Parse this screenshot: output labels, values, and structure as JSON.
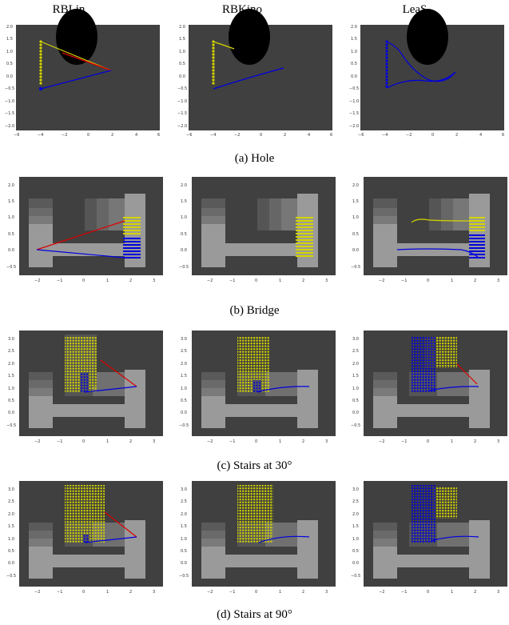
{
  "column_headers": [
    "RBLin",
    "RBKino",
    "LeaS"
  ],
  "captions": [
    "(a) Hole",
    "(b) Bridge",
    "(c) Stairs at 30°",
    "(d) Stairs at 90°"
  ],
  "colors": {
    "background_field": "#404040",
    "terrain_light": "#9a9a9a",
    "hole": "#000000",
    "yellow": "#d4d400",
    "blue": "#0000dd",
    "red": "#dd0000"
  },
  "chart_data": [
    {
      "panel": "hole",
      "type": "scatter",
      "xlim": [
        -6,
        6
      ],
      "ylim": [
        -2.1,
        2.1
      ],
      "xticks": [
        "−6",
        "−4",
        "−2",
        "0",
        "2",
        "4",
        "6"
      ],
      "yticks": [
        "2.0",
        "1.5",
        "1.0",
        "0.5",
        "0.0",
        "−0.5",
        "−1.0",
        "−1.5",
        "−2.0"
      ],
      "grid": false,
      "start_points": [
        {
          "x": -4,
          "y": 1.4
        },
        {
          "x": -4,
          "y": -0.5
        }
      ],
      "goal": {
        "x": 1.8,
        "y": 0.3
      }
    },
    {
      "panel": "bridge",
      "type": "scatter",
      "xlim": [
        -3,
        3.4
      ],
      "ylim": [
        -0.7,
        2.3
      ],
      "xticks": [
        "−2",
        "−1",
        "0",
        "1",
        "2",
        "3"
      ],
      "yticks": [
        "2.0",
        "1.5",
        "1.0",
        "0.5",
        "0.0",
        "−0.5"
      ],
      "grid": false,
      "start_points": [
        {
          "x": -2,
          "y": 0.2
        }
      ],
      "goal_region": {
        "x": [
          1.7,
          2.2
        ],
        "y": [
          -0.3,
          1.1
        ]
      }
    },
    {
      "panel": "stairs_30",
      "type": "scatter",
      "xlim": [
        -3,
        3.4
      ],
      "ylim": [
        -0.7,
        3.3
      ],
      "xticks": [
        "−2",
        "−1",
        "0",
        "1",
        "2",
        "3"
      ],
      "yticks": [
        "3.0",
        "2.5",
        "2.0",
        "1.5",
        "1.0",
        "0.5",
        "0.0",
        "−0.5"
      ],
      "grid": false,
      "goal": {
        "x": 2.3,
        "y": 1.1
      }
    },
    {
      "panel": "stairs_90",
      "type": "scatter",
      "xlim": [
        -3,
        3.4
      ],
      "ylim": [
        -0.7,
        3.3
      ],
      "xticks": [
        "−2",
        "−1",
        "0",
        "1",
        "2",
        "3"
      ],
      "yticks": [
        "3.0",
        "2.5",
        "2.0",
        "1.5",
        "1.0",
        "0.5",
        "0.0",
        "−0.5"
      ],
      "grid": false,
      "goal": {
        "x": 2.3,
        "y": 1.1
      }
    }
  ]
}
